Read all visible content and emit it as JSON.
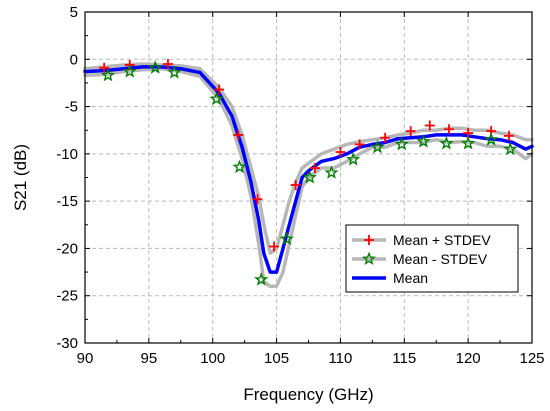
{
  "chart_data": {
    "type": "line",
    "title": "",
    "xlabel": "Frequency (GHz)",
    "ylabel": "S21 (dB)",
    "xlim": [
      90,
      125
    ],
    "ylim": [
      -30,
      5
    ],
    "x_ticks": [
      90,
      95,
      100,
      105,
      110,
      115,
      120,
      125
    ],
    "x_tick_labels": [
      "90",
      "95",
      "100",
      "105",
      "110",
      "115",
      "120",
      "125"
    ],
    "y_ticks": [
      5,
      0,
      -5,
      -10,
      -15,
      -20,
      -25,
      -30
    ],
    "y_tick_labels": [
      "5",
      "0",
      "-5",
      "-10",
      "-15",
      "-20",
      "-25",
      "-30"
    ],
    "grid": true,
    "legend_position": "bottom-right",
    "colors": {
      "mean": "#0000ff",
      "mean_plus": "#b7b7b7",
      "mean_minus": "#b7b7b7",
      "plus_marker": "#ff0000",
      "star_marker": "#008000"
    },
    "series": [
      {
        "name": "Mean + STDEV",
        "marker": "plus",
        "x": [
          90,
          91.5,
          93,
          94.5,
          96,
          97.5,
          99,
          100.5,
          101.5,
          102.3,
          103,
          103.6,
          104,
          104.5,
          105,
          105.5,
          106,
          106.5,
          107,
          107.5,
          108.5,
          109.5,
          110.5,
          111.5,
          112.5,
          113.5,
          114.5,
          115.5,
          116.5,
          117.5,
          118.5,
          119.5,
          120.5,
          121.5,
          122.5,
          123.5,
          124.5,
          125
        ],
        "y": [
          -1.0,
          -0.8,
          -0.6,
          -0.5,
          -0.6,
          -0.7,
          -1.0,
          -3.0,
          -5.0,
          -8.0,
          -11.5,
          -14.5,
          -17.5,
          -20.5,
          -20.0,
          -17.5,
          -15.0,
          -13.0,
          -11.5,
          -11.0,
          -10.0,
          -9.5,
          -9.0,
          -8.7,
          -8.5,
          -8.3,
          -8.0,
          -7.8,
          -7.5,
          -7.5,
          -7.3,
          -7.3,
          -7.5,
          -7.5,
          -7.8,
          -8.0,
          -8.5,
          -8.5
        ]
      },
      {
        "name": "Mean - STDEV",
        "marker": "star",
        "x": [
          90,
          91.5,
          93,
          94.5,
          96,
          97.5,
          99,
          100.5,
          101.5,
          102.3,
          103,
          103.6,
          104,
          104.5,
          105,
          105.5,
          106,
          106.5,
          107,
          107.5,
          108.5,
          109.5,
          110.5,
          111.5,
          112.5,
          113.5,
          114.5,
          115.5,
          116.5,
          117.5,
          118.5,
          119.5,
          120.5,
          121.5,
          122.5,
          123.5,
          124.5,
          125
        ],
        "y": [
          -1.7,
          -1.6,
          -1.3,
          -1.1,
          -1.0,
          -1.3,
          -1.8,
          -4.2,
          -7.0,
          -10.5,
          -14.5,
          -19.5,
          -23.5,
          -24.0,
          -24.0,
          -22.5,
          -19.5,
          -16.5,
          -13.5,
          -12.5,
          -11.5,
          -11.5,
          -10.8,
          -10.0,
          -9.3,
          -9.3,
          -8.8,
          -8.8,
          -8.8,
          -8.5,
          -8.8,
          -8.7,
          -8.8,
          -9.2,
          -9.2,
          -9.5,
          -10.5,
          -10.0
        ]
      },
      {
        "name": "Mean",
        "marker": "none",
        "x": [
          90,
          91.5,
          93,
          94.5,
          96,
          97.5,
          99,
          100.5,
          101.5,
          102.3,
          103,
          103.6,
          104,
          104.5,
          105,
          105.5,
          106,
          106.5,
          107,
          107.5,
          108.5,
          109.5,
          110.5,
          111.5,
          112.5,
          113.5,
          114.5,
          115.5,
          116.5,
          117.5,
          118.5,
          119.5,
          120.5,
          121.5,
          122.5,
          123.5,
          124.5,
          125
        ],
        "y": [
          -1.3,
          -1.2,
          -1.0,
          -0.8,
          -0.8,
          -1.0,
          -1.4,
          -3.6,
          -6.0,
          -9.3,
          -13.0,
          -17.0,
          -20.5,
          -22.5,
          -22.5,
          -20.0,
          -17.5,
          -15.0,
          -12.5,
          -11.8,
          -10.8,
          -10.5,
          -10.0,
          -9.3,
          -9.0,
          -8.8,
          -8.4,
          -8.3,
          -8.2,
          -8.0,
          -8.0,
          -8.0,
          -8.2,
          -8.4,
          -8.5,
          -8.8,
          -9.5,
          -9.2
        ]
      }
    ],
    "plus_markers": {
      "x": [
        91.5,
        93.5,
        96.5,
        100.5,
        102,
        103.5,
        104.8,
        106.5,
        108,
        110,
        111.5,
        113.5,
        115.5,
        117,
        118.5,
        120,
        121.8,
        123.2
      ],
      "y": [
        -0.9,
        -0.6,
        -0.5,
        -3.2,
        -8.0,
        -14.8,
        -19.8,
        -13.3,
        -11.5,
        -9.8,
        -9.0,
        -8.3,
        -7.6,
        -7.0,
        -7.4,
        -7.8,
        -7.6,
        -8.1
      ]
    },
    "star_markers": {
      "x": [
        91.8,
        93.5,
        95.5,
        97,
        100.3,
        102.1,
        103.8,
        105.8,
        107.6,
        109.3,
        111,
        112.9,
        114.8,
        116.5,
        118.3,
        120,
        121.8,
        123.3
      ],
      "y": [
        -1.7,
        -1.3,
        -0.9,
        -1.4,
        -4.2,
        -11.4,
        -23.3,
        -19.0,
        -12.5,
        -12.0,
        -10.6,
        -9.3,
        -9.0,
        -8.7,
        -8.9,
        -8.9,
        -8.5,
        -9.5
      ]
    }
  }
}
